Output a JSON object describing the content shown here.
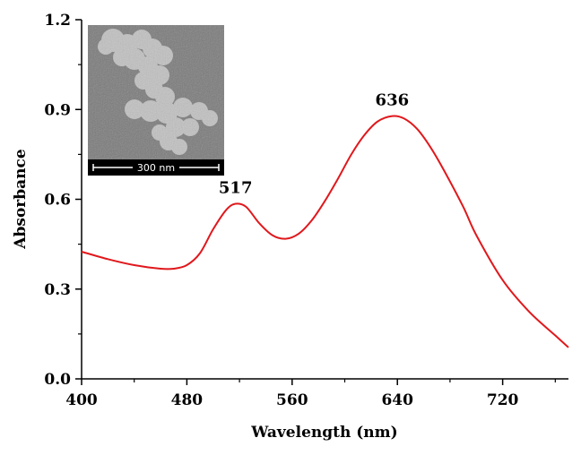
{
  "chart_data": {
    "type": "line",
    "xlabel": "Wavelength (nm)",
    "ylabel": "Absorbance",
    "xlim": [
      400,
      770
    ],
    "ylim": [
      0.0,
      1.2
    ],
    "xticks": [
      400,
      480,
      560,
      640,
      720
    ],
    "xtick_labels": [
      "400",
      "480",
      "560",
      "640",
      "720"
    ],
    "yticks": [
      0.0,
      0.3,
      0.6,
      0.9,
      1.2
    ],
    "ytick_labels": [
      "0.0",
      "0.3",
      "0.6",
      "0.9",
      "1.2"
    ],
    "grid": false,
    "line_color": "#e0181c",
    "series": [
      {
        "x": [
          400,
          420,
          440,
          460,
          470,
          480,
          490,
          500,
          510,
          517,
          525,
          535,
          545,
          555,
          565,
          575,
          585,
          595,
          605,
          615,
          625,
          636,
          645,
          655,
          665,
          675,
          690,
          700,
          720,
          740,
          760,
          770
        ],
        "values": [
          0.425,
          0.4,
          0.38,
          0.368,
          0.368,
          0.38,
          0.42,
          0.5,
          0.565,
          0.585,
          0.575,
          0.52,
          0.48,
          0.468,
          0.485,
          0.53,
          0.595,
          0.67,
          0.75,
          0.815,
          0.86,
          0.878,
          0.87,
          0.835,
          0.775,
          0.7,
          0.575,
          0.48,
          0.33,
          0.225,
          0.145,
          0.105
        ]
      }
    ],
    "annotations": [
      {
        "text": "517",
        "x": 517,
        "y": 0.585
      },
      {
        "text": "636",
        "x": 636,
        "y": 0.878
      }
    ],
    "inset": {
      "type": "micrograph",
      "scale_bar_label": "300 nm"
    }
  }
}
